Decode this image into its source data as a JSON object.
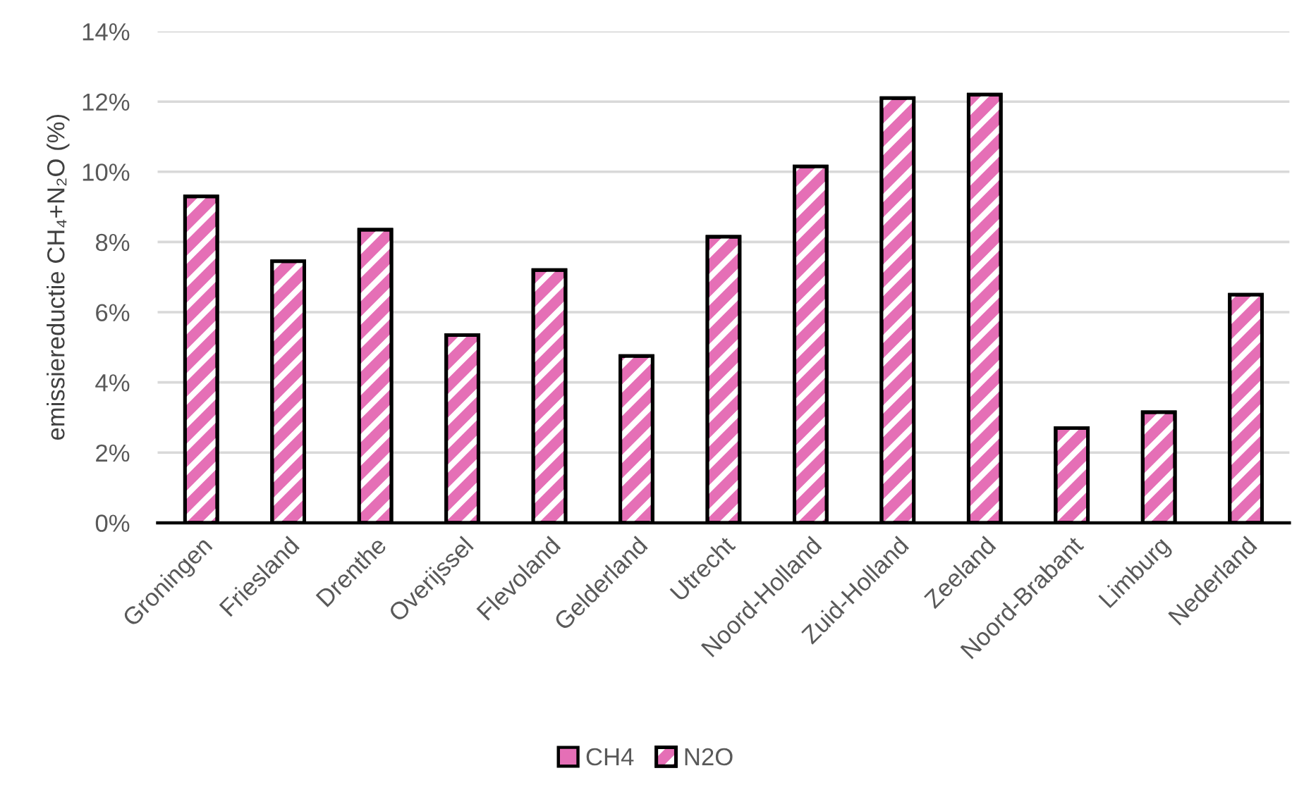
{
  "chart_data": {
    "type": "bar",
    "ylabel": "emissiereductie CH₄+N₂O (%)",
    "categories": [
      "Groningen",
      "Friesland",
      "Drenthe",
      "Overijssel",
      "Flevoland",
      "Gelderland",
      "Utrecht",
      "Noord-Holland",
      "Zuid-Holland",
      "Zeeland",
      "Noord-Brabant",
      "Limburg",
      "Nederland"
    ],
    "series": [
      {
        "name": "CH4",
        "color": "#e56fb6",
        "values": [
          null,
          null,
          null,
          null,
          null,
          null,
          null,
          null,
          null,
          null,
          null,
          null,
          null
        ]
      },
      {
        "name": "N2O",
        "color": "#e56fb6",
        "values": [
          9.3,
          7.45,
          8.35,
          5.35,
          7.2,
          4.75,
          8.15,
          10.15,
          12.1,
          12.2,
          2.7,
          3.15,
          6.5
        ]
      }
    ],
    "stacked": true,
    "ylim": [
      0,
      14
    ],
    "yticks": [
      {
        "value": 0,
        "label": "0%"
      },
      {
        "value": 2,
        "label": "2%"
      },
      {
        "value": 4,
        "label": "4%"
      },
      {
        "value": 6,
        "label": "6%"
      },
      {
        "value": 8,
        "label": "8%"
      },
      {
        "value": 10,
        "label": "10%"
      },
      {
        "value": 12,
        "label": "12%"
      },
      {
        "value": 14,
        "label": "14%"
      }
    ],
    "grid": "y",
    "legend": "bottom"
  }
}
